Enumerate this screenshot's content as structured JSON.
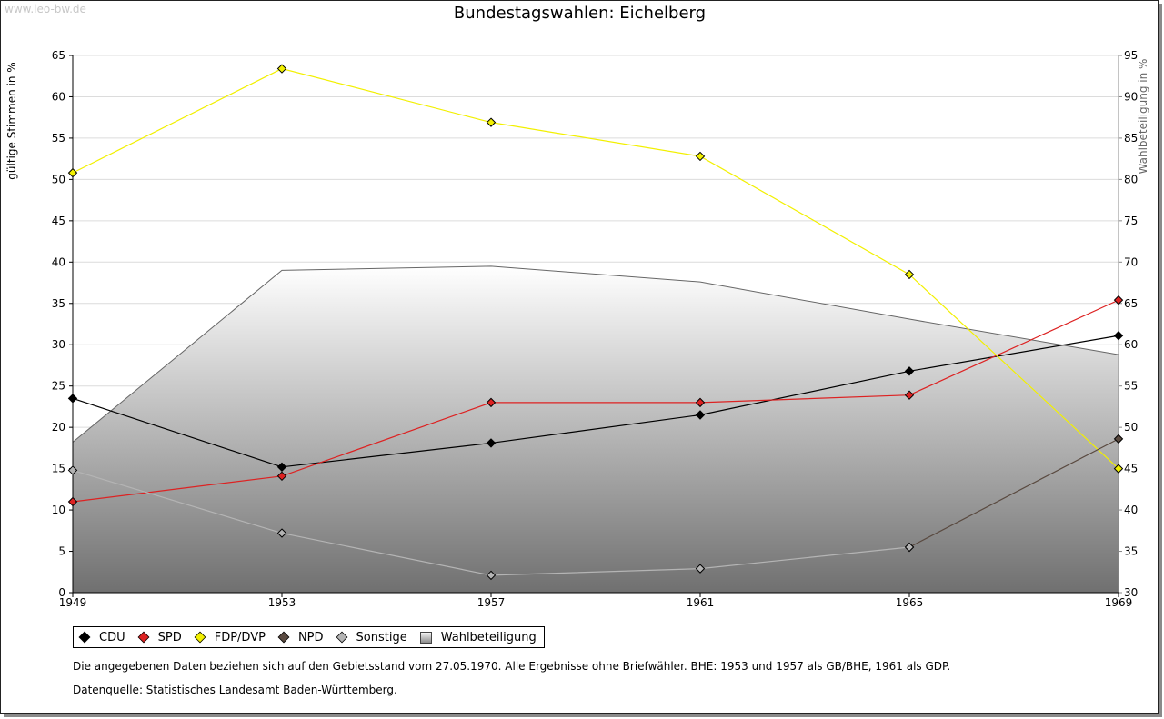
{
  "watermark": "www.leo-bw.de",
  "title": "Bundestagswahlen: Eichelberg",
  "chart_data": {
    "type": "line",
    "title": "Bundestagswahlen: Eichelberg",
    "x": [
      "1949",
      "1953",
      "1957",
      "1961",
      "1965",
      "1969"
    ],
    "ylabel": "gültige Stimmen in %",
    "ylim": [
      0,
      65
    ],
    "yticks": [
      "0",
      "5",
      "10",
      "15",
      "20",
      "25",
      "30",
      "35",
      "40",
      "45",
      "50",
      "55",
      "60",
      "65"
    ],
    "y2label": "Wahlbeteiligung in %",
    "y2lim": [
      30,
      95
    ],
    "y2ticks": [
      "30",
      "35",
      "40",
      "45",
      "50",
      "55",
      "60",
      "65",
      "70",
      "75",
      "80",
      "85",
      "90",
      "95"
    ],
    "grid": true,
    "series": [
      {
        "name": "CDU",
        "color": "#000000",
        "values": [
          23.5,
          15.2,
          18.1,
          21.5,
          26.8,
          31.1
        ]
      },
      {
        "name": "SPD",
        "color": "#dd2222",
        "values": [
          11.0,
          14.1,
          23.0,
          23.0,
          23.9,
          35.4
        ]
      },
      {
        "name": "FDP/DVP",
        "color": "#f2f000",
        "values": [
          50.8,
          63.4,
          56.9,
          52.8,
          38.5,
          15.0
        ]
      },
      {
        "name": "NPD",
        "color": "#5a4a40",
        "values": [
          null,
          null,
          null,
          null,
          5.5,
          18.6
        ]
      },
      {
        "name": "Sonstige",
        "color": "#b4b4b4",
        "values": [
          14.8,
          7.2,
          2.1,
          2.9,
          5.5,
          null
        ]
      }
    ],
    "area_series": {
      "name": "Wahlbeteiligung",
      "values": [
        48.2,
        69.0,
        69.5,
        67.6,
        63.1,
        58.8
      ]
    }
  },
  "legend": [
    "CDU",
    "SPD",
    "FDP/DVP",
    "NPD",
    "Sonstige",
    "Wahlbeteiligung"
  ],
  "footnote": "Die angegebenen Daten beziehen sich auf den Gebietsstand vom 27.05.1970. Alle Ergebnisse ohne Briefwähler. BHE: 1953 und 1957 als GB/BHE, 1961 als GDP.",
  "source": "Datenquelle: Statistisches Landesamt Baden-Württemberg."
}
